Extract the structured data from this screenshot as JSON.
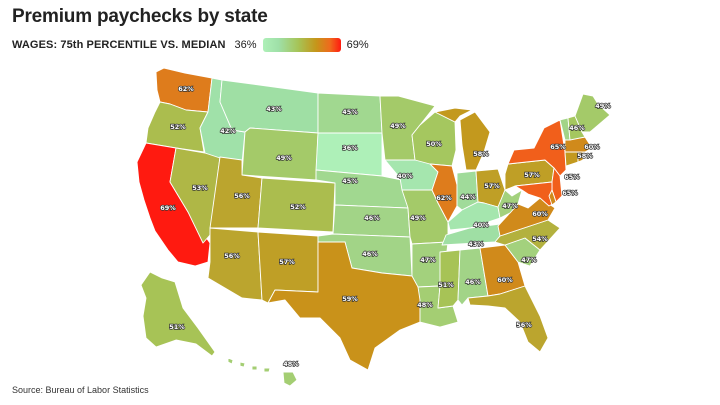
{
  "title": "Premium paychecks by state",
  "legend": {
    "title": "WAGES: 75th PERCENTILE VS. MEDIAN",
    "min_label": "36%",
    "max_label": "69%"
  },
  "source": "Source: Bureau of Labor Statistics",
  "colors": {
    "low": "#aef0b8",
    "mid": "#a6c457",
    "high": "#c5961a",
    "max": "#ff1a10"
  },
  "chart_data": {
    "type": "choropleth",
    "metric": "75th percentile wage vs. median",
    "scale": [
      36,
      69
    ],
    "states": [
      {
        "state": "WA",
        "value": 62,
        "label": "62%"
      },
      {
        "state": "OR",
        "value": 52,
        "label": "52%"
      },
      {
        "state": "CA",
        "value": 69,
        "label": "69%"
      },
      {
        "state": "NV",
        "value": 53,
        "label": "53%"
      },
      {
        "state": "ID",
        "value": 42,
        "label": "42%"
      },
      {
        "state": "MT",
        "value": 43,
        "label": "43%"
      },
      {
        "state": "WY",
        "value": 49,
        "label": "49%"
      },
      {
        "state": "UT",
        "value": 56,
        "label": "56%"
      },
      {
        "state": "CO",
        "value": 52,
        "label": "52%"
      },
      {
        "state": "AZ",
        "value": 56,
        "label": "56%"
      },
      {
        "state": "NM",
        "value": 57,
        "label": "57%"
      },
      {
        "state": "ND",
        "value": 45,
        "label": "45%"
      },
      {
        "state": "SD",
        "value": 36,
        "label": "36%"
      },
      {
        "state": "NE",
        "value": 45,
        "label": "45%"
      },
      {
        "state": "KS",
        "value": 46,
        "label": "46%"
      },
      {
        "state": "OK",
        "value": 46,
        "label": "46%"
      },
      {
        "state": "TX",
        "value": 59,
        "label": "59%"
      },
      {
        "state": "MN",
        "value": 49,
        "label": "49%"
      },
      {
        "state": "IA",
        "value": 40,
        "label": "40%"
      },
      {
        "state": "MO",
        "value": 49,
        "label": "49%"
      },
      {
        "state": "AR",
        "value": 47,
        "label": "47%"
      },
      {
        "state": "LA",
        "value": 48,
        "label": "48%"
      },
      {
        "state": "WI",
        "value": 50,
        "label": "50%"
      },
      {
        "state": "IL",
        "value": 62,
        "label": "62%"
      },
      {
        "state": "MI",
        "value": 58,
        "label": "58%"
      },
      {
        "state": "IN",
        "value": 44,
        "label": "44%"
      },
      {
        "state": "OH",
        "value": 57,
        "label": "57%"
      },
      {
        "state": "KY",
        "value": 40,
        "label": "40%"
      },
      {
        "state": "TN",
        "value": 43,
        "label": "43%"
      },
      {
        "state": "MS",
        "value": 51,
        "label": "51%"
      },
      {
        "state": "AL",
        "value": 46,
        "label": "46%"
      },
      {
        "state": "GA",
        "value": 60,
        "label": "60%"
      },
      {
        "state": "FL",
        "value": 56,
        "label": "56%"
      },
      {
        "state": "SC",
        "value": 47,
        "label": "47%"
      },
      {
        "state": "NC",
        "value": 54,
        "label": "54%"
      },
      {
        "state": "VA",
        "value": 60,
        "label": "60%"
      },
      {
        "state": "WV",
        "value": 47,
        "label": "47%"
      },
      {
        "state": "PA",
        "value": 57,
        "label": "57%"
      },
      {
        "state": "NY",
        "value": 65,
        "label": "65%"
      },
      {
        "state": "NJ",
        "value": 65,
        "label": "65%"
      },
      {
        "state": "MD",
        "value": 65,
        "label": "65%"
      },
      {
        "state": "DE",
        "value": 60,
        "label": ""
      },
      {
        "state": "CT",
        "value": 58,
        "label": "58%"
      },
      {
        "state": "RI",
        "value": 59,
        "label": ""
      },
      {
        "state": "MA",
        "value": 60,
        "label": "60%"
      },
      {
        "state": "VT",
        "value": 46,
        "label": "46%"
      },
      {
        "state": "NH",
        "value": 50,
        "label": ""
      },
      {
        "state": "ME",
        "value": 49,
        "label": "49%"
      },
      {
        "state": "AK",
        "value": 51,
        "label": "51%"
      },
      {
        "state": "HI",
        "value": 48,
        "label": "48%"
      }
    ]
  }
}
